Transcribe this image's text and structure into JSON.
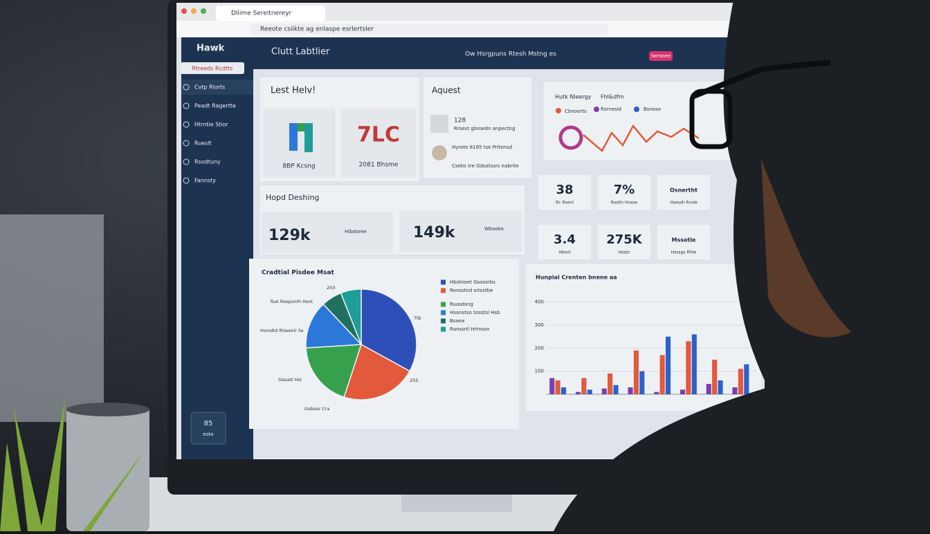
{
  "browser": {
    "tab": "Dliime Sereitnereyr",
    "url": "Reeote csiikte ag enlaspe esrlertsler"
  },
  "sidebar": {
    "brand": "Hawk",
    "button": "Rtreeds Rcdtts",
    "items": [
      "Cvtp Rlorts",
      "Peadt Ragertte",
      "Htrntie Stior",
      "Rueslt",
      "Rsodtuny",
      "Fannsty"
    ],
    "footer": {
      "value": "85",
      "label": "eote"
    }
  },
  "header": {
    "title": "Clutt Labtlier",
    "subtitle": "Ow Hsrgpuns Rtesh Mstng es",
    "badge": "Sersnee"
  },
  "cards": {
    "lest": {
      "title": "Lest Helv!",
      "big": "7LC",
      "left_caption": "8BP Kcsng",
      "right_caption": "2081 Bhsme"
    },
    "aquest": {
      "title": "Aquest",
      "count": "128",
      "lines": [
        "Rrsest gbroedn anpectng",
        "Hyrote 8185 tse Pritensd",
        "Csebs tre Gdsatssrs eabrite"
      ]
    },
    "hopd": {
      "title": "Hopd Deshing",
      "metrics": [
        {
          "value": "129k",
          "label": "Hibdoree"
        },
        {
          "value": "149k",
          "label": "Wbooke"
        }
      ]
    },
    "trend": {
      "title": "Hutk Nleergy",
      "tag": "Fhl&dfm",
      "legend": [
        "Cbnoorts",
        "Rsrnesid",
        "Bsnose"
      ]
    },
    "stats": [
      {
        "value": "38",
        "label": "Rc Rsenl"
      },
      {
        "value": "7%",
        "label": "Rsstln Hnsse"
      },
      {
        "value": "Osnertht",
        "label": "Hsessh Rvsle"
      },
      {
        "value": "3.4",
        "label": "Hbsnt"
      },
      {
        "value": "275K",
        "label": "Hsstn"
      },
      {
        "value": "Mssotle",
        "label": "Hsssgs Rhte"
      }
    ]
  },
  "pie_chart": {
    "type": "pie",
    "title": "Cradtial Pisdee Msat",
    "categories": [
      "Hbstnoet Gsossrbs",
      "Ronsstnd srtsstbe",
      "Ruasdsng",
      "Hsanstso tosstsl Hsb",
      "Bsaea",
      "Ranssrtl Hrtnssn"
    ],
    "values": [
      33,
      22,
      19,
      14,
      6,
      6
    ],
    "colors": [
      "#2f4fb8",
      "#e2593b",
      "#36a04d",
      "#2b78d8",
      "#20705f",
      "#1f9d98"
    ],
    "annotations": [
      "Tsat Rsepsnth Hsot",
      "Hsmdtd Rtieenlr ile",
      "Slasatl Hsl",
      "Gsbear Cra",
      "Ttb",
      "203",
      "25S"
    ]
  },
  "bar_chart": {
    "type": "bar",
    "title": "Hunpial Crenten bnene aa",
    "categories": [
      null,
      null,
      null,
      null,
      null,
      null,
      null,
      null
    ],
    "series": [
      {
        "color": "#7a3fb0",
        "values": [
          70,
          10,
          25,
          30,
          10,
          20,
          45,
          30
        ]
      },
      {
        "color": "#e2593b",
        "values": [
          60,
          70,
          90,
          190,
          170,
          230,
          150,
          110
        ]
      },
      {
        "color": "#2d5fd0",
        "values": [
          30,
          20,
          40,
          100,
          250,
          260,
          60,
          130
        ]
      }
    ],
    "ylim": [
      0,
      450
    ],
    "yticks": [
      100,
      200,
      300,
      400
    ]
  }
}
